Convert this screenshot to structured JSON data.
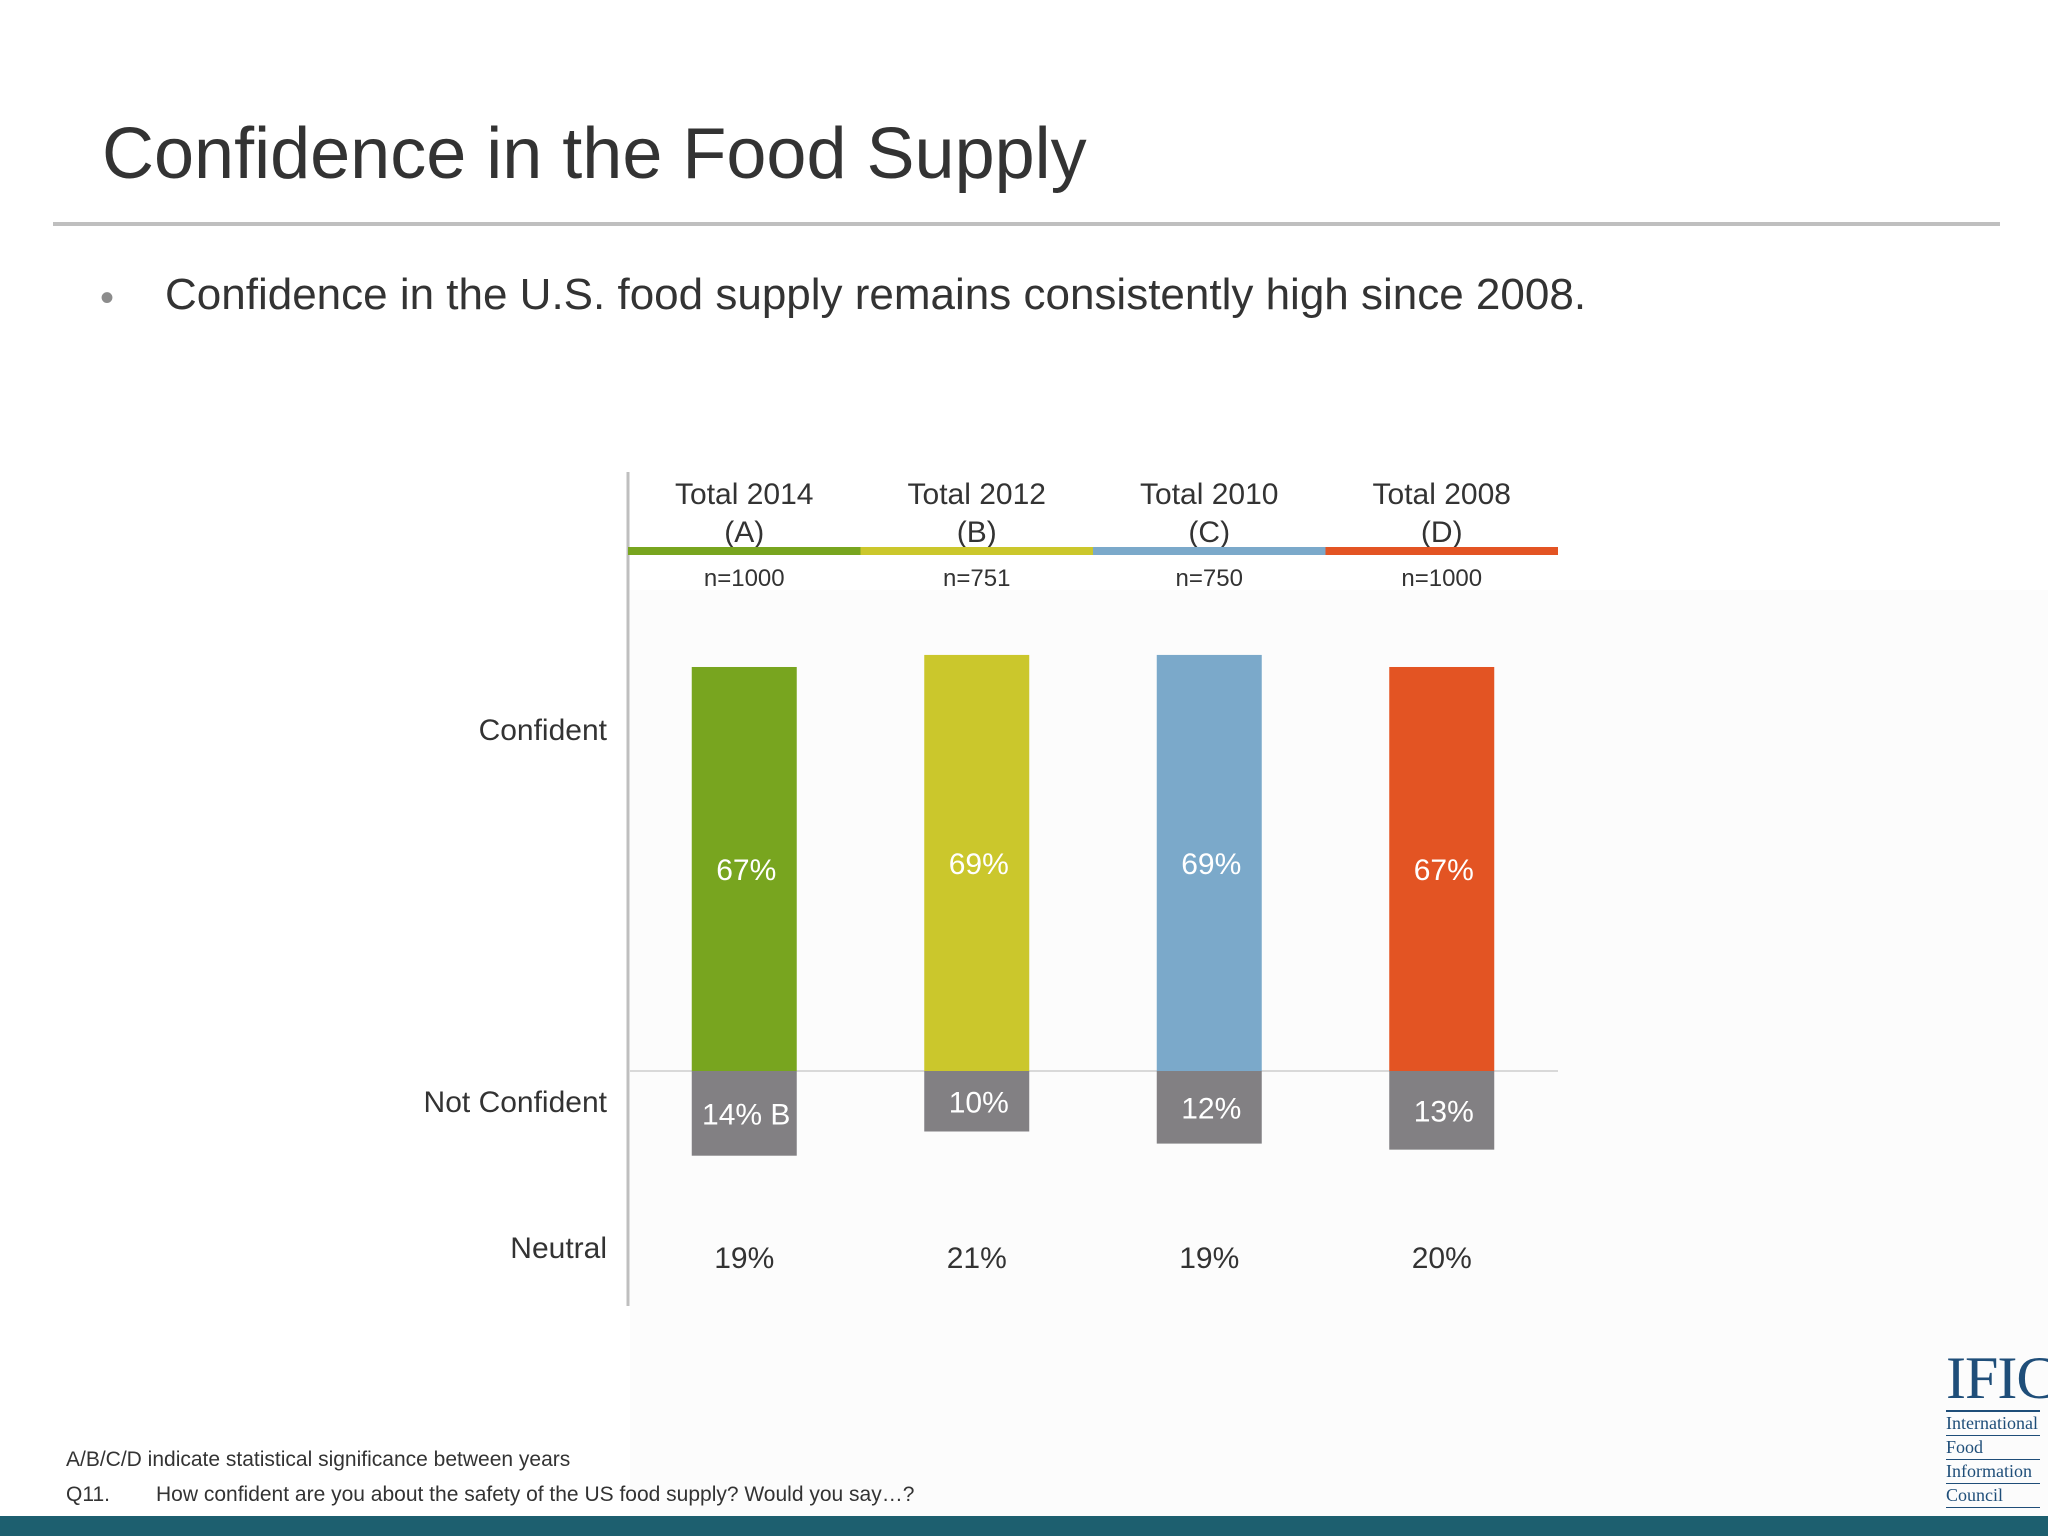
{
  "slide": {
    "title": "Confidence in the Food Supply",
    "bullet": "Confidence in the U.S. food supply remains consistently high since 2008."
  },
  "chart_data": {
    "type": "bar",
    "categories": [
      "Total 2014",
      "Total 2012",
      "Total 2010",
      "Total 2008"
    ],
    "category_letters": [
      "(A)",
      "(B)",
      "(C)",
      "(D)"
    ],
    "sample_sizes": [
      "n=1000",
      "n=751",
      "n=750",
      "n=1000"
    ],
    "row_labels": [
      "Confident",
      "Not Confident",
      "Neutral"
    ],
    "series": [
      {
        "name": "Confident",
        "values": [
          67,
          69,
          69,
          67
        ],
        "labels": [
          "67%",
          "69%",
          "69%",
          "67%"
        ]
      },
      {
        "name": "Not Confident",
        "values": [
          14,
          10,
          12,
          13
        ],
        "labels": [
          "14% B",
          "10%",
          "12%",
          "13%"
        ]
      },
      {
        "name": "Neutral",
        "values": [
          19,
          21,
          19,
          20
        ],
        "labels": [
          "19%",
          "21%",
          "19%",
          "20%"
        ]
      }
    ],
    "colors": [
      "#78a51f",
      "#cbc72c",
      "#7ba9ca",
      "#e35423"
    ],
    "not_confident_color": "#828083",
    "unit": "%"
  },
  "footnotes": {
    "significance": "A/B/C/D indicate statistical significance between years",
    "question_number": "Q11.",
    "question": "How confident are you about the safety of the US food supply? Would you say…?"
  },
  "logo": {
    "mark": "IFIC",
    "lines": [
      "International",
      "Food",
      "Information",
      "Council"
    ]
  }
}
